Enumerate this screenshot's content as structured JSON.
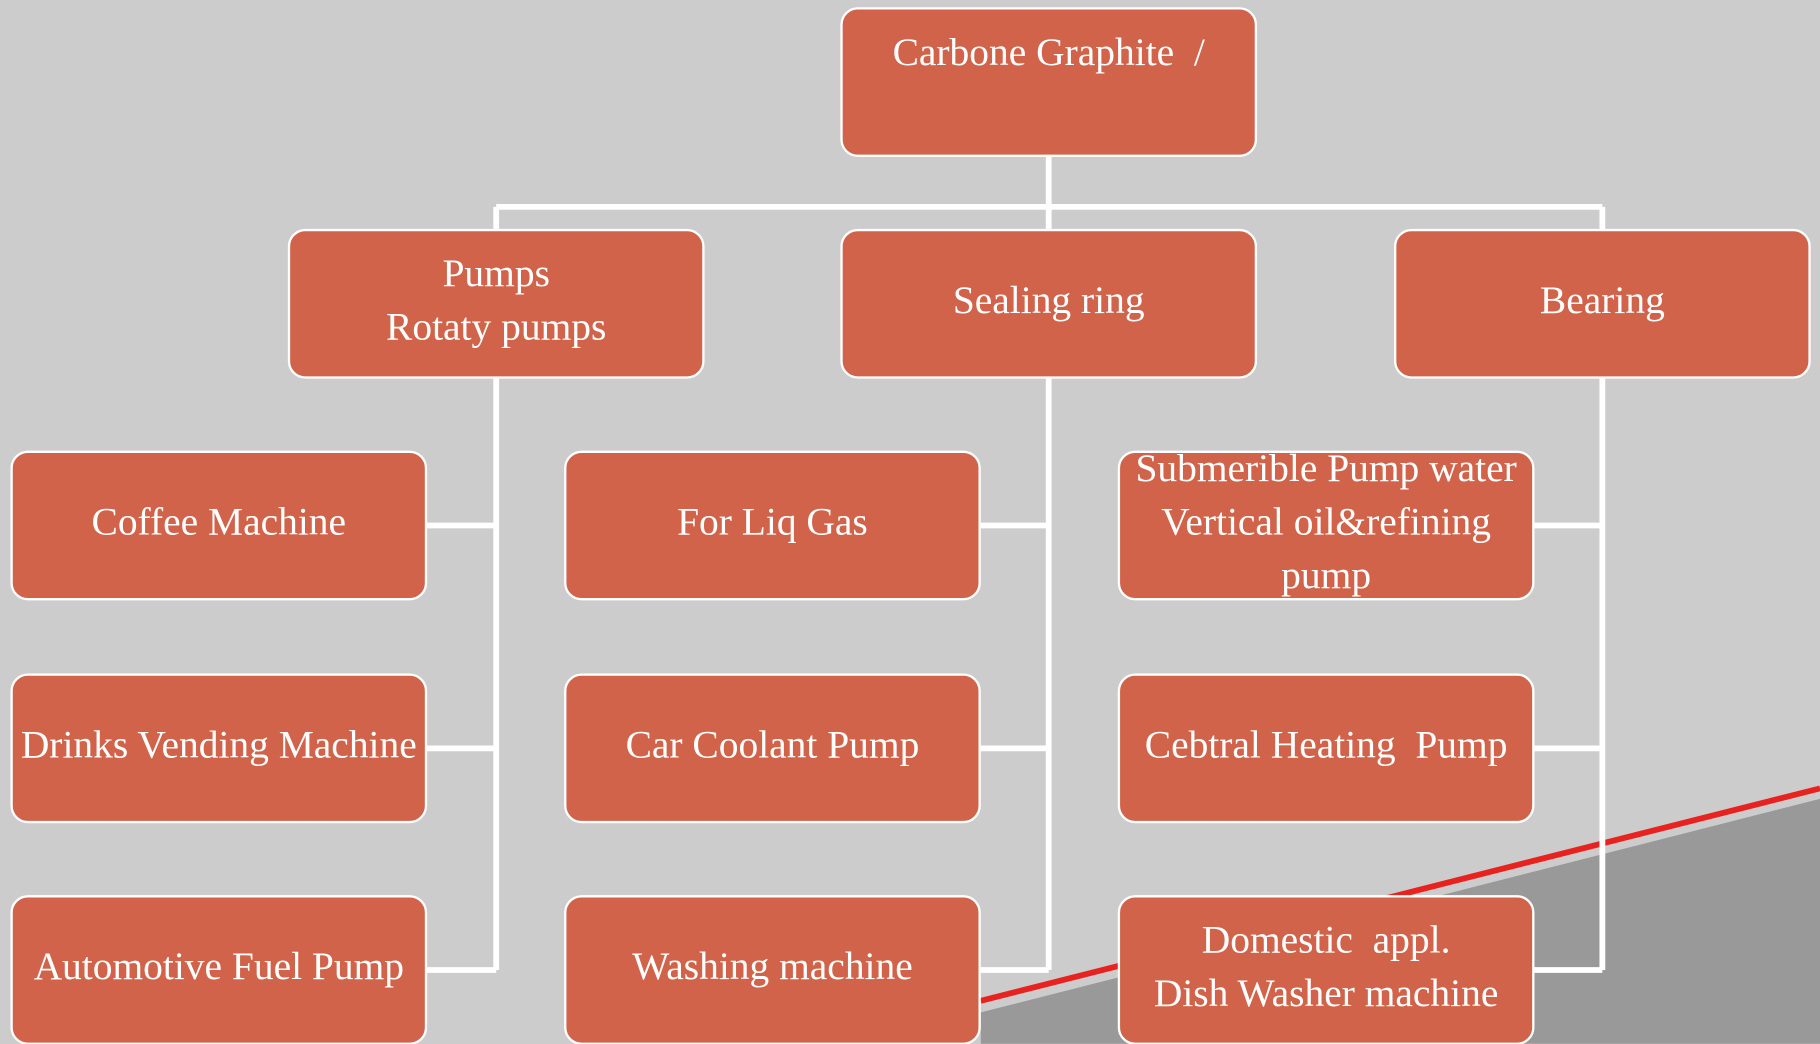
{
  "root": {
    "lines": [
      "Carbone Graphite  /"
    ]
  },
  "branches": [
    {
      "lines": [
        "Pumps",
        "Rotaty pumps"
      ],
      "leaves": [
        {
          "lines": [
            "Coffee Machine"
          ]
        },
        {
          "lines": [
            "Drinks Vending Machine"
          ]
        },
        {
          "lines": [
            "Automotive Fuel Pump"
          ]
        }
      ]
    },
    {
      "lines": [
        "Sealing ring"
      ],
      "leaves": [
        {
          "lines": [
            "For Liq Gas"
          ]
        },
        {
          "lines": [
            "Car Coolant Pump"
          ]
        },
        {
          "lines": [
            "Washing machine"
          ]
        }
      ]
    },
    {
      "lines": [
        "Bearing"
      ],
      "leaves": [
        {
          "lines": [
            "Submerible Pump water",
            "Vertical oil&refining",
            "pump"
          ]
        },
        {
          "lines": [
            "Cebtral Heating  Pump"
          ]
        },
        {
          "lines": [
            "Domestic  appl.",
            "Dish Washer machine"
          ]
        }
      ]
    }
  ]
}
